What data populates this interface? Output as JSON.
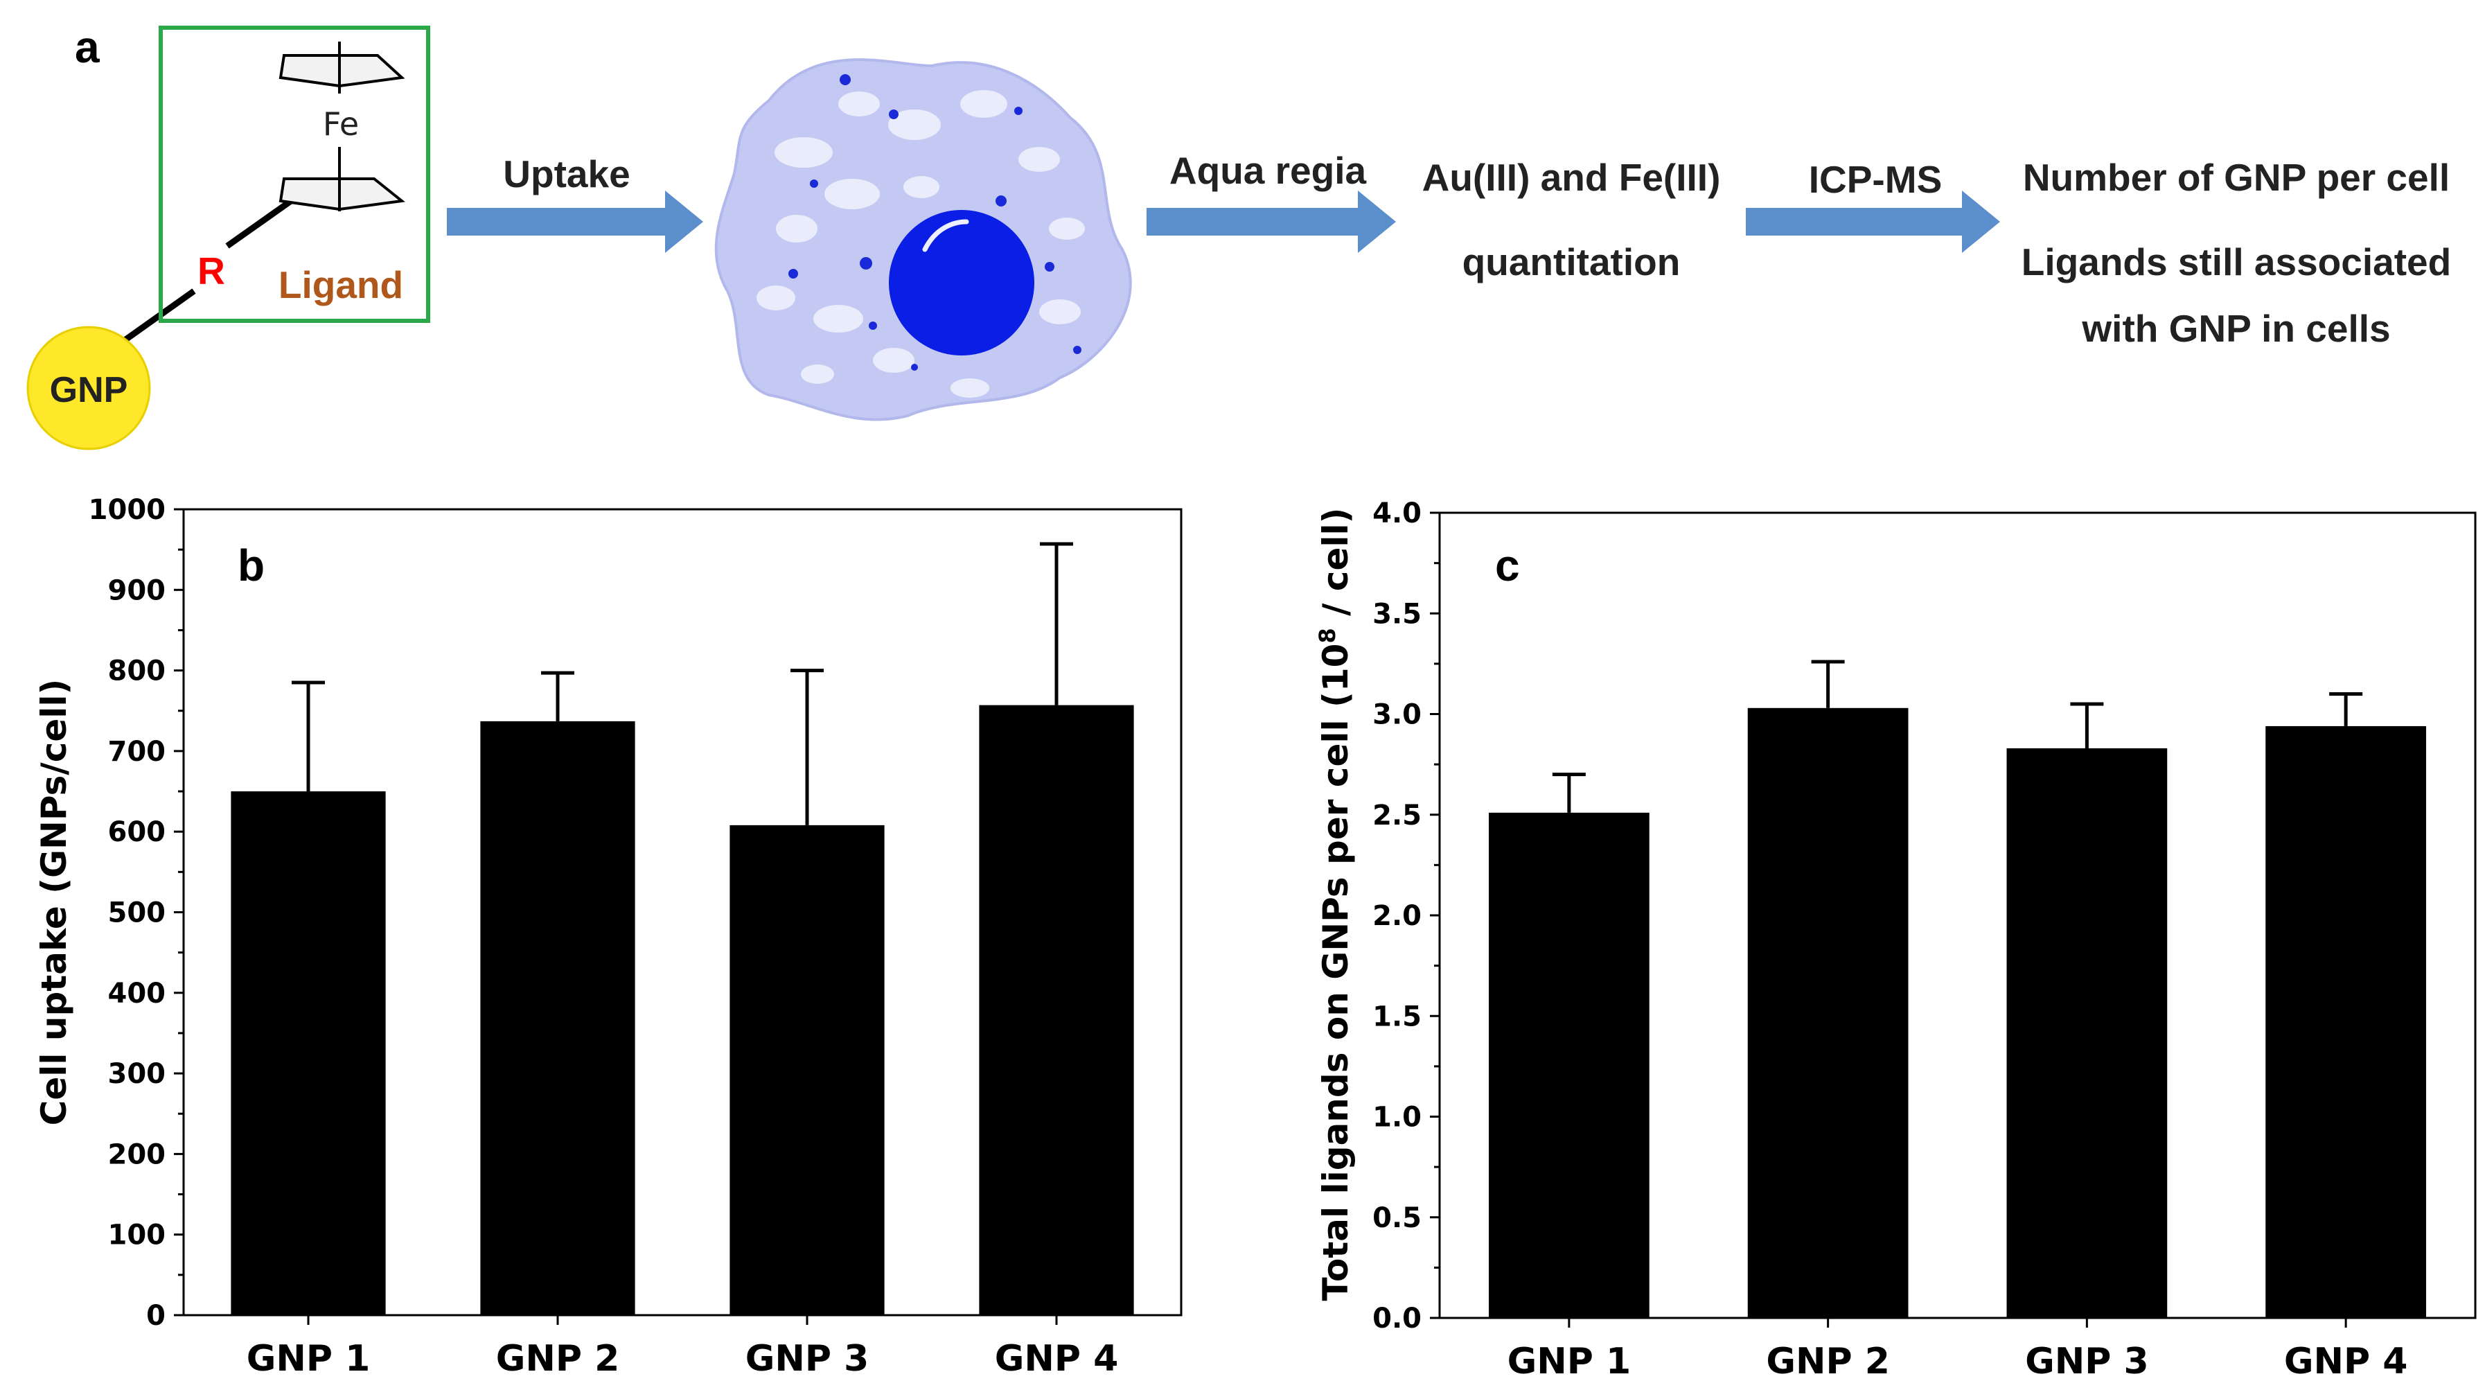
{
  "panel_a": {
    "label": "a",
    "gnp_label": "GNP",
    "linker_label": "R",
    "ligand_label": "Ligand",
    "metal_label": "Fe",
    "steps": {
      "uptake": "Uptake",
      "digest": "Aqua regia",
      "quant_line1": "Au(III) and Fe(III)",
      "quant_line2": "quantitation",
      "method": "ICP-MS",
      "result_line1": "Number of GNP per cell",
      "result_line2": "Ligands still associated",
      "result_line3": "with GNP in cells"
    },
    "colors": {
      "arrow": "#5b8fcb",
      "gnp": "#ffe82a",
      "box": "#2aa84a",
      "linker": "#ff0000",
      "ligand": "#b0571c",
      "cell_body": "#c4c9f3",
      "nucleus": "#0a1ee6"
    }
  },
  "chart_data": [
    {
      "type": "bar",
      "panel_label": "b",
      "title": "",
      "xlabel": "",
      "ylabel": "Cell uptake (GNPs/cell)",
      "categories": [
        "GNP 1",
        "GNP 2",
        "GNP 3",
        "GNP 4"
      ],
      "values": [
        650,
        737,
        608,
        757
      ],
      "error_upper": [
        135,
        60,
        192,
        200
      ],
      "ylim": [
        0,
        1000
      ],
      "yticks": [
        0,
        100,
        200,
        300,
        400,
        500,
        600,
        700,
        800,
        900,
        1000
      ],
      "ytick_labels": [
        "0",
        "100",
        "200",
        "300",
        "400",
        "500",
        "600",
        "700",
        "800",
        "900",
        "1000"
      ],
      "bar_color": "#000000",
      "grid": false,
      "legend": "none"
    },
    {
      "type": "bar",
      "panel_label": "c",
      "title": "",
      "xlabel": "",
      "ylabel": "Total ligands on GNPs per cell (10",
      "ylabel_superscript": "8",
      "ylabel_suffix": " / cell)",
      "categories": [
        "GNP 1",
        "GNP 2",
        "GNP 3",
        "GNP 4"
      ],
      "values": [
        2.51,
        3.03,
        2.83,
        2.94
      ],
      "error_upper": [
        0.19,
        0.23,
        0.22,
        0.16
      ],
      "ylim": [
        0,
        4
      ],
      "yticks": [
        0,
        0.5,
        1,
        1.5,
        2,
        2.5,
        3,
        3.5,
        4
      ],
      "ytick_labels": [
        "0.0",
        "0.5",
        "1.0",
        "1.5",
        "2.0",
        "2.5",
        "3.0",
        "3.5",
        "4.0"
      ],
      "bar_color": "#000000",
      "grid": false,
      "legend": "none"
    }
  ]
}
